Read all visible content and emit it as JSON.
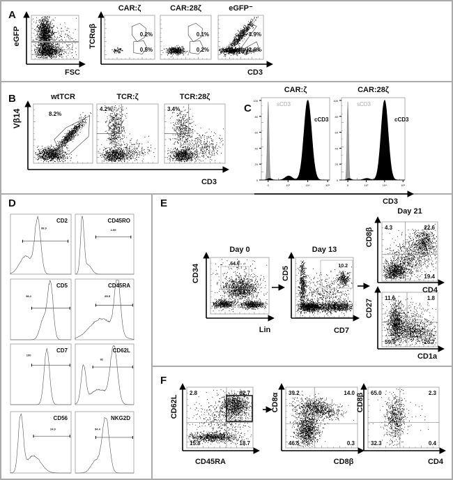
{
  "panel_letters": [
    "A",
    "B",
    "C",
    "D",
    "E",
    "F"
  ],
  "chart_data": [
    {
      "panel": "A",
      "type": "scatter",
      "xlabel": "FSC",
      "ylabel": "eGFP"
    },
    {
      "panel": "A",
      "type": "scatter",
      "xlabel": "CD3",
      "ylabel": "TCRαβ",
      "plots": [
        {
          "title": "CAR:ζ",
          "gates": [
            "0.2%",
            "0.5%"
          ]
        },
        {
          "title": "CAR:28ζ",
          "gates": [
            "0.1%",
            "0.2%"
          ]
        },
        {
          "title": "eGFP⁻",
          "gates": [
            "4.9%",
            "2.6%"
          ]
        }
      ]
    },
    {
      "panel": "B",
      "type": "scatter",
      "xlabel": "CD3",
      "ylabel": "Vβ14",
      "plots": [
        {
          "title": "wtTCR",
          "gates": [
            "8.2%"
          ]
        },
        {
          "title": "TCR:ζ",
          "gates": [
            "4.2%"
          ]
        },
        {
          "title": "TCR:28ζ",
          "gates": [
            "3.4%"
          ]
        }
      ]
    },
    {
      "panel": "C",
      "type": "histogram",
      "xlabel": "CD3",
      "yticks": [
        "0",
        "20",
        "40",
        "60",
        "80",
        "100"
      ],
      "xticks": [
        "0",
        "10³",
        "10⁴",
        "10⁵"
      ],
      "series": [
        {
          "name": "sCD3",
          "color": "#9a9a9a"
        },
        {
          "name": "cCD3",
          "color": "#000000"
        }
      ],
      "plots": [
        {
          "title": "CAR:ζ"
        },
        {
          "title": "CAR:28ζ"
        }
      ]
    },
    {
      "panel": "D",
      "type": "histogram",
      "plots": [
        {
          "marker": "CD2",
          "gate": "99.9"
        },
        {
          "marker": "CD45RO",
          "gate": "1.99"
        },
        {
          "marker": "CD5",
          "gate": "98.2"
        },
        {
          "marker": "CD45RA",
          "gate": "85.5"
        },
        {
          "marker": "CD7",
          "gate": "100"
        },
        {
          "marker": "CD62L",
          "gate": "82"
        },
        {
          "marker": "CD56",
          "gate": "24.9"
        },
        {
          "marker": "NKG2D",
          "gate": "94.4"
        }
      ]
    },
    {
      "panel": "E",
      "type": "scatter",
      "plots": [
        {
          "title": "Day 0",
          "xlabel": "Lin",
          "ylabel": "CD34",
          "gates": [
            "64.6"
          ]
        },
        {
          "title": "Day 13",
          "xlabel": "CD7",
          "ylabel": "CD5",
          "gates": [
            "10.2"
          ]
        },
        {
          "title": "Day 21",
          "xlabel": "CD4",
          "ylabel": "CD8β",
          "quadrants": [
            "4.3",
            "22.6",
            "53.7",
            "19.4"
          ]
        },
        {
          "xlabel": "CD1a",
          "ylabel": "CD27",
          "quadrants": [
            "11.6",
            "1.8",
            "59.9",
            "26.7"
          ]
        }
      ]
    },
    {
      "panel": "F",
      "type": "scatter",
      "plots": [
        {
          "xlabel": "CD45RA",
          "ylabel": "CD62L",
          "quadrants": [
            "2.8",
            "62.7",
            "15.8",
            "18.7"
          ]
        },
        {
          "xlabel": "CD8β",
          "ylabel": "CD8α",
          "quadrants": [
            "39.2",
            "14.0",
            "46.5",
            "0.3"
          ]
        },
        {
          "xlabel": "CD4",
          "ylabel": "CD8β",
          "quadrants": [
            "65.0",
            "2.3",
            "32.3",
            "0.4"
          ]
        }
      ]
    }
  ]
}
